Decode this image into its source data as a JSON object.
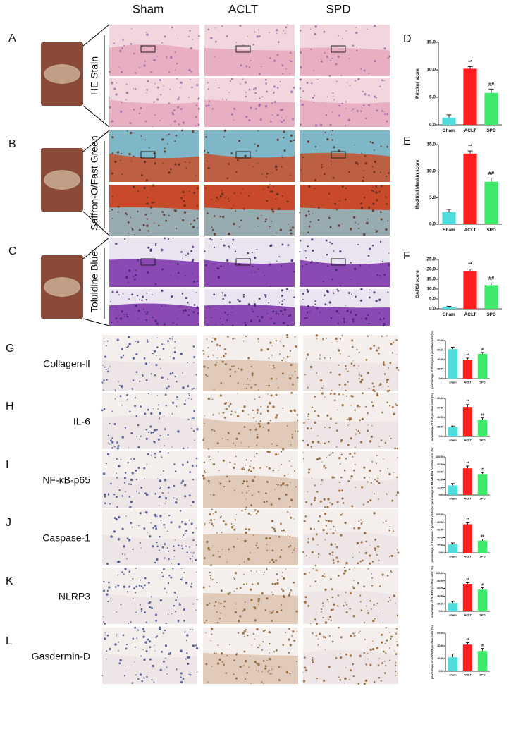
{
  "columns": [
    "Sham",
    "ACLT",
    "SPD"
  ],
  "panel_letters": [
    "A",
    "B",
    "C",
    "D",
    "E",
    "F",
    "G",
    "H",
    "I",
    "J",
    "K",
    "L"
  ],
  "stains": [
    "HE Stain",
    "Saffron-O/Fast Green",
    "Toluidine Blue"
  ],
  "markers": [
    "Collagen-Ⅱ",
    "IL-6",
    "NF-κB-p65",
    "Caspase-1",
    "NLRP3",
    "Gasdermin-D"
  ],
  "chart_data": [
    {
      "type": "bar",
      "ylabel": "Pritzker score",
      "categories": [
        "Sham",
        "ACLT",
        "SPD"
      ],
      "values": [
        1.3,
        10.2,
        5.8
      ],
      "errors": [
        0.5,
        0.4,
        0.7
      ],
      "annotations": [
        null,
        "**",
        "##"
      ],
      "colors": [
        "#4fdcdc",
        "#ff1f1f",
        "#3ee86a"
      ],
      "ylim": [
        0,
        15
      ],
      "yticks": [
        {
          "value": 0,
          "label": "0.0"
        },
        {
          "value": 5,
          "label": "5.0"
        },
        {
          "value": 10,
          "label": "10.0"
        },
        {
          "value": 15,
          "label": "15.0"
        }
      ]
    },
    {
      "type": "bar",
      "ylabel": "Modified Mankin score",
      "categories": [
        "Sham",
        "ACLT",
        "SPD"
      ],
      "values": [
        2.3,
        13.3,
        8.0
      ],
      "errors": [
        0.5,
        0.5,
        0.7
      ],
      "annotations": [
        null,
        "**",
        "##"
      ],
      "colors": [
        "#4fdcdc",
        "#ff1f1f",
        "#3ee86a"
      ],
      "ylim": [
        0,
        15
      ],
      "yticks": [
        {
          "value": 0,
          "label": "0.0"
        },
        {
          "value": 5,
          "label": "5.0"
        },
        {
          "value": 10,
          "label": "10.0"
        },
        {
          "value": 15,
          "label": "15.0"
        }
      ]
    },
    {
      "type": "bar",
      "ylabel": "OARSI score",
      "categories": [
        "Sham",
        "ACLT",
        "SPD"
      ],
      "values": [
        0.9,
        19.2,
        12.0
      ],
      "errors": [
        0.4,
        1.0,
        1.1
      ],
      "annotations": [
        null,
        "**",
        "##"
      ],
      "colors": [
        "#4fdcdc",
        "#ff1f1f",
        "#3ee86a"
      ],
      "ylim": [
        0,
        25
      ],
      "yticks": [
        {
          "value": 0,
          "label": "0.0"
        },
        {
          "value": 5,
          "label": "5.0"
        },
        {
          "value": 10,
          "label": "10.0"
        },
        {
          "value": 15,
          "label": "15.0"
        },
        {
          "value": 20,
          "label": "20.0"
        },
        {
          "value": 25,
          "label": "25.0"
        }
      ]
    },
    {
      "type": "bar",
      "ylabel": "percentage of Collagen-II positive cells (%)",
      "categories": [
        "sham",
        "ACLT",
        "SPD"
      ],
      "values": [
        62,
        40,
        52
      ],
      "errors": [
        4,
        3,
        3
      ],
      "annotations": [
        null,
        "**",
        "#"
      ],
      "colors": [
        "#4fdcdc",
        "#ff1f1f",
        "#3ee86a"
      ],
      "ylim": [
        0,
        80
      ],
      "yticks": [
        {
          "value": 0,
          "label": "0.0"
        },
        {
          "value": 20,
          "label": "20.0"
        },
        {
          "value": 40,
          "label": "40.0"
        },
        {
          "value": 60,
          "label": "60.0"
        },
        {
          "value": 80,
          "label": "80.0"
        }
      ]
    },
    {
      "type": "bar",
      "ylabel": "percentage of IL-6 positive cells (%)",
      "categories": [
        "sham",
        "ACLT",
        "SPD"
      ],
      "values": [
        20,
        62,
        35
      ],
      "errors": [
        2,
        5,
        4
      ],
      "annotations": [
        null,
        "**",
        "##"
      ],
      "colors": [
        "#4fdcdc",
        "#ff1f1f",
        "#3ee86a"
      ],
      "ylim": [
        0,
        80
      ],
      "yticks": [
        {
          "value": 0,
          "label": "0.0"
        },
        {
          "value": 20,
          "label": "20.0"
        },
        {
          "value": 40,
          "label": "40.0"
        },
        {
          "value": 60,
          "label": "60.0"
        },
        {
          "value": 80,
          "label": "80.0"
        }
      ]
    },
    {
      "type": "bar",
      "ylabel": "percentage of NF-κB-P65 positive cells (%)",
      "categories": [
        "sham",
        "ACLT",
        "SPD"
      ],
      "values": [
        25,
        70,
        55
      ],
      "errors": [
        5,
        6,
        4
      ],
      "annotations": [
        null,
        "**",
        "#"
      ],
      "colors": [
        "#4fdcdc",
        "#ff1f1f",
        "#3ee86a"
      ],
      "ylim": [
        0,
        100
      ],
      "yticks": [
        {
          "value": 0,
          "label": "0.0"
        },
        {
          "value": 20,
          "label": "20.0"
        },
        {
          "value": 40,
          "label": "40.0"
        },
        {
          "value": 60,
          "label": "60.0"
        },
        {
          "value": 80,
          "label": "80.0"
        },
        {
          "value": 100,
          "label": "100.0"
        }
      ]
    },
    {
      "type": "bar",
      "ylabel": "percentage of Caspase-1 positive cells (%)",
      "categories": [
        "sham",
        "ACLT",
        "SPD"
      ],
      "values": [
        22,
        75,
        32
      ],
      "errors": [
        4,
        4,
        4
      ],
      "annotations": [
        null,
        "**",
        "##"
      ],
      "colors": [
        "#4fdcdc",
        "#ff1f1f",
        "#3ee86a"
      ],
      "ylim": [
        0,
        100
      ],
      "yticks": [
        {
          "value": 0,
          "label": "0.0"
        },
        {
          "value": 20,
          "label": "20.0"
        },
        {
          "value": 40,
          "label": "40.0"
        },
        {
          "value": 60,
          "label": "60.0"
        },
        {
          "value": 80,
          "label": "80.0"
        },
        {
          "value": 100,
          "label": "100.0"
        }
      ]
    },
    {
      "type": "bar",
      "ylabel": "percentage of NLRP3 positive cells (%)",
      "categories": [
        "sham",
        "ACLT",
        "SPD"
      ],
      "values": [
        22,
        72,
        57
      ],
      "errors": [
        4,
        3,
        5
      ],
      "annotations": [
        null,
        "**",
        "#"
      ],
      "colors": [
        "#4fdcdc",
        "#ff1f1f",
        "#3ee86a"
      ],
      "ylim": [
        0,
        100
      ],
      "yticks": [
        {
          "value": 0,
          "label": "0.0"
        },
        {
          "value": 20,
          "label": "20.0"
        },
        {
          "value": 40,
          "label": "40.0"
        },
        {
          "value": 60,
          "label": "60.0"
        },
        {
          "value": 80,
          "label": "80.0"
        },
        {
          "value": 100,
          "label": "100.0"
        }
      ]
    },
    {
      "type": "bar",
      "ylabel": "percentage of GSDMD positive cells (%)",
      "categories": [
        "sham",
        "ACLT",
        "SPD"
      ],
      "values": [
        22,
        42,
        32
      ],
      "errors": [
        5,
        3,
        4
      ],
      "annotations": [
        null,
        "**",
        "#"
      ],
      "colors": [
        "#4fdcdc",
        "#ff1f1f",
        "#3ee86a"
      ],
      "ylim": [
        0,
        60
      ],
      "yticks": [
        {
          "value": 0,
          "label": "0.0"
        },
        {
          "value": 20,
          "label": "20.0"
        },
        {
          "value": 40,
          "label": "40.0"
        },
        {
          "value": 60,
          "label": "60.0"
        }
      ]
    }
  ]
}
